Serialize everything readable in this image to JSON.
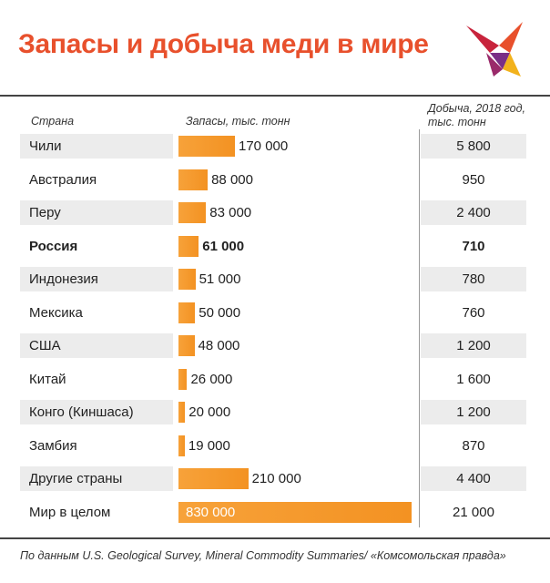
{
  "title": "Запасы и добыча меди в мире",
  "colors": {
    "title": "#e8502c",
    "bar": "#f39222",
    "shade": "#ececec"
  },
  "chart_data": {
    "type": "bar",
    "orientation": "horizontal",
    "title": "Запасы и добыча меди в мире",
    "column_headers": {
      "country": "Страна",
      "reserves": "Запасы, тыс. тонн",
      "production": "Добыча, 2018 год, тыс. тонн"
    },
    "rows": [
      {
        "country": "Чили",
        "reserves": 170000,
        "reserves_label": "170 000",
        "production": "5 800"
      },
      {
        "country": "Австралия",
        "reserves": 88000,
        "reserves_label": "88 000",
        "production": "950"
      },
      {
        "country": "Перу",
        "reserves": 83000,
        "reserves_label": "83 000",
        "production": "2 400"
      },
      {
        "country": "Россия",
        "reserves": 61000,
        "reserves_label": "61 000",
        "production": "710",
        "bold": true
      },
      {
        "country": "Индонезия",
        "reserves": 51000,
        "reserves_label": "51 000",
        "production": "780"
      },
      {
        "country": "Мексика",
        "reserves": 50000,
        "reserves_label": "50 000",
        "production": "760"
      },
      {
        "country": "США",
        "reserves": 48000,
        "reserves_label": "48 000",
        "production": "1 200"
      },
      {
        "country": "Китай",
        "reserves": 26000,
        "reserves_label": "26 000",
        "production": "1 600"
      },
      {
        "country": "Конго (Киншаса)",
        "reserves": 20000,
        "reserves_label": "20 000",
        "production": "1 200"
      },
      {
        "country": "Замбия",
        "reserves": 19000,
        "reserves_label": "19 000",
        "production": "870"
      },
      {
        "country": "Другие страны",
        "reserves": 210000,
        "reserves_label": "210 000",
        "production": "4 400"
      },
      {
        "country": "Мир в целом",
        "reserves": 830000,
        "reserves_label": "830 000",
        "production": "21 000",
        "label_inside": true
      }
    ]
  },
  "source": "По данным U.S. Geological Survey, Mineral Commodity Summaries/ «Комсомольская правда»"
}
